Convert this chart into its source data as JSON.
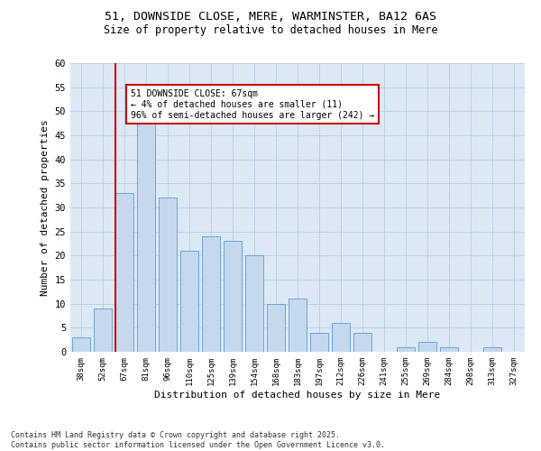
{
  "title": "51, DOWNSIDE CLOSE, MERE, WARMINSTER, BA12 6AS",
  "subtitle": "Size of property relative to detached houses in Mere",
  "xlabel": "Distribution of detached houses by size in Mere",
  "ylabel": "Number of detached properties",
  "categories": [
    "38sqm",
    "52sqm",
    "67sqm",
    "81sqm",
    "96sqm",
    "110sqm",
    "125sqm",
    "139sqm",
    "154sqm",
    "168sqm",
    "183sqm",
    "197sqm",
    "212sqm",
    "226sqm",
    "241sqm",
    "255sqm",
    "269sqm",
    "284sqm",
    "298sqm",
    "313sqm",
    "327sqm"
  ],
  "values": [
    3,
    9,
    33,
    48,
    32,
    21,
    24,
    23,
    20,
    10,
    11,
    4,
    6,
    4,
    0,
    1,
    2,
    1,
    0,
    1,
    0
  ],
  "bar_color": "#c5d8ed",
  "bar_edge_color": "#5b9bd5",
  "highlight_index": 2,
  "highlight_line_color": "#cc0000",
  "ylim": [
    0,
    60
  ],
  "yticks": [
    0,
    5,
    10,
    15,
    20,
    25,
    30,
    35,
    40,
    45,
    50,
    55,
    60
  ],
  "annotation_text": "51 DOWNSIDE CLOSE: 67sqm\n← 4% of detached houses are smaller (11)\n96% of semi-detached houses are larger (242) →",
  "annotation_box_color": "#ffffff",
  "annotation_box_edge_color": "#cc0000",
  "background_color": "#dce9f5",
  "footer_line1": "Contains HM Land Registry data © Crown copyright and database right 2025.",
  "footer_line2": "Contains public sector information licensed under the Open Government Licence v3.0."
}
